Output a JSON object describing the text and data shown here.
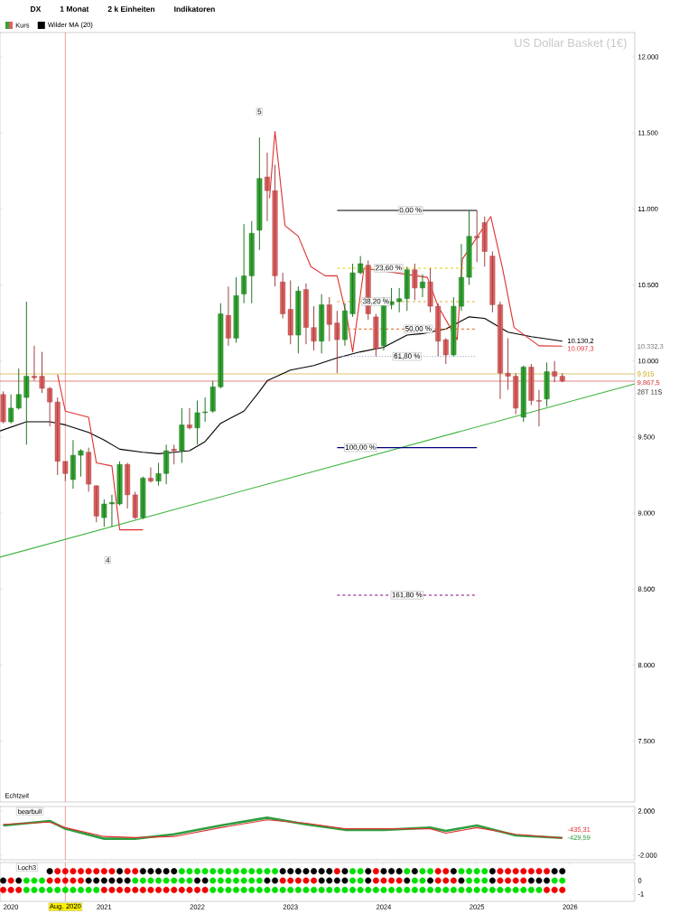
{
  "chart_data": [
    {
      "type": "candlestick",
      "title": "US Dollar Basket (1€)",
      "subtitle": "Echtzeit",
      "legend": "top left",
      "tick_labels": "y",
      "xlim": [
        "2019-11-19",
        "2026-09-11"
      ],
      "ylim": [
        7100,
        12160
      ],
      "yticks": [
        {
          "value": 7500,
          "label": "7.500"
        },
        {
          "value": 8000,
          "label": "8.000"
        },
        {
          "value": 8500,
          "label": "8.500"
        },
        {
          "value": 9000,
          "label": "9.000"
        },
        {
          "value": 9500,
          "label": "9.500"
        },
        {
          "value": 10000,
          "label": "10.000"
        },
        {
          "value": 10500,
          "label": "10.500"
        },
        {
          "value": 11000,
          "label": "11.000"
        },
        {
          "value": 11500,
          "label": "11.500"
        },
        {
          "value": 12000,
          "label": "12.000"
        }
      ],
      "series": [
        {
          "type": "candlestick",
          "name": "Kurs",
          "x": [
            "2019-12",
            "2020-01",
            "2020-02",
            "2020-03",
            "2020-04",
            "2020-05",
            "2020-06",
            "2020-07",
            "2020-08",
            "2020-09",
            "2020-10",
            "2020-11",
            "2020-12",
            "2021-01",
            "2021-02",
            "2021-03",
            "2021-04",
            "2021-05",
            "2021-06",
            "2021-07",
            "2021-08",
            "2021-09",
            "2021-10",
            "2021-11",
            "2021-12",
            "2022-01",
            "2022-02",
            "2022-03",
            "2022-04",
            "2022-05",
            "2022-06",
            "2022-07",
            "2022-08",
            "2022-09",
            "2022-10",
            "2022-11",
            "2022-12",
            "2023-01",
            "2023-02",
            "2023-03",
            "2023-04",
            "2023-05",
            "2023-06",
            "2023-07",
            "2023-08",
            "2023-09",
            "2023-10",
            "2023-11",
            "2023-12",
            "2024-01",
            "2024-02",
            "2024-03",
            "2024-04",
            "2024-05",
            "2024-06",
            "2024-07",
            "2024-08",
            "2024-09",
            "2024-10",
            "2024-11",
            "2024-12",
            "2025-01",
            "2025-02",
            "2025-03",
            "2025-04",
            "2025-05",
            "2025-06",
            "2025-07",
            "2025-08",
            "2025-09",
            "2025-10",
            "2025-11",
            "2025-12"
          ],
          "ohlc": [
            [
              9780,
              9800,
              9590,
              9600
            ],
            [
              9600,
              9780,
              9590,
              9690
            ],
            [
              9690,
              9950,
              9680,
              9780
            ],
            [
              9760,
              10390,
              9450,
              9900
            ],
            [
              9900,
              10100,
              9870,
              9890
            ],
            [
              9900,
              10060,
              9790,
              9820
            ],
            [
              9820,
              9830,
              9570,
              9730
            ],
            [
              9730,
              9760,
              9250,
              9340
            ],
            [
              9340,
              9340,
              9210,
              9260
            ],
            [
              9220,
              9480,
              9160,
              9380
            ],
            [
              9380,
              9420,
              9240,
              9410
            ],
            [
              9400,
              9430,
              9140,
              9190
            ],
            [
              9180,
              9180,
              8940,
              8980
            ],
            [
              8970,
              9090,
              8910,
              9060
            ],
            [
              9060,
              9120,
              8910,
              9070
            ],
            [
              9060,
              9340,
              9050,
              9320
            ],
            [
              9320,
              9330,
              9030,
              9120
            ],
            [
              9120,
              9140,
              8960,
              8970
            ],
            [
              8970,
              9240,
              8960,
              9230
            ],
            [
              9230,
              9300,
              9200,
              9210
            ],
            [
              9210,
              9330,
              9180,
              9260
            ],
            [
              9260,
              9450,
              9190,
              9410
            ],
            [
              9420,
              9450,
              9320,
              9410
            ],
            [
              9410,
              9690,
              9330,
              9580
            ],
            [
              9580,
              9690,
              9550,
              9560
            ],
            [
              9560,
              9740,
              9450,
              9660
            ],
            [
              9660,
              9760,
              9600,
              9665
            ],
            [
              9670,
              9870,
              9660,
              9830
            ],
            [
              9830,
              10380,
              9820,
              10310
            ],
            [
              10300,
              10490,
              10100,
              10150
            ],
            [
              10150,
              10550,
              10120,
              10430
            ],
            [
              10440,
              10900,
              10380,
              10560
            ],
            [
              10560,
              10920,
              10380,
              10840
            ],
            [
              10860,
              11470,
              10730,
              11200
            ],
            [
              11210,
              11370,
              10920,
              11120
            ],
            [
              11120,
              11290,
              10490,
              10560
            ],
            [
              10520,
              10580,
              10280,
              10310
            ],
            [
              10340,
              10530,
              10110,
              10170
            ],
            [
              10170,
              10490,
              10050,
              10460
            ],
            [
              10470,
              10510,
              10110,
              10220
            ],
            [
              10220,
              10360,
              10070,
              10130
            ],
            [
              10130,
              10440,
              10050,
              10370
            ],
            [
              10370,
              10420,
              10130,
              10240
            ],
            [
              10250,
              10330,
              9920,
              10140
            ],
            [
              10140,
              10380,
              10100,
              10330
            ],
            [
              10310,
              10640,
              10290,
              10580
            ],
            [
              10580,
              10690,
              10570,
              10640
            ],
            [
              10630,
              10660,
              10270,
              10310
            ],
            [
              10290,
              10310,
              10030,
              10080
            ],
            [
              10100,
              10420,
              10070,
              10370
            ],
            [
              10370,
              10480,
              10340,
              10390
            ],
            [
              10390,
              10480,
              10320,
              10410
            ],
            [
              10410,
              10620,
              10330,
              10600
            ],
            [
              10600,
              10640,
              10400,
              10480
            ],
            [
              10480,
              10570,
              10420,
              10520
            ],
            [
              10520,
              10610,
              10320,
              10360
            ],
            [
              10360,
              10380,
              10030,
              10130
            ],
            [
              10140,
              10150,
              9980,
              10040
            ],
            [
              10040,
              10420,
              10030,
              10360
            ],
            [
              10360,
              10770,
              10330,
              10550
            ],
            [
              10550,
              10990,
              10500,
              10820
            ],
            [
              10820,
              10990,
              10650,
              10810
            ],
            [
              10910,
              10950,
              10620,
              10720
            ],
            [
              10690,
              10720,
              10320,
              10370
            ],
            [
              10370,
              10390,
              9750,
              9920
            ],
            [
              9920,
              10150,
              9810,
              9900
            ],
            [
              9900,
              9920,
              9650,
              9690
            ],
            [
              9630,
              9970,
              9600,
              9960
            ],
            [
              9960,
              9980,
              9710,
              9740
            ],
            [
              9740,
              9810,
              9570,
              9735
            ],
            [
              9750,
              9990,
              9700,
              9930
            ],
            [
              9930,
              10000,
              9860,
              9900
            ],
            [
              9900,
              9920,
              9860,
              9867.5
            ]
          ],
          "colors": [
            "#e06060",
            "#33a532",
            "#33a532",
            "#33a532",
            "#e06060",
            "#e06060",
            "#e06060",
            "#e06060",
            "#e06060",
            "#33a532",
            "#33a532",
            "#e06060",
            "#e06060",
            "#33a532",
            "#33a532",
            "#33a532",
            "#e06060",
            "#e06060",
            "#33a532",
            "#e06060",
            "#33a532",
            "#33a532",
            "#e06060",
            "#33a532",
            "#e06060",
            "#33a532",
            "#33a532",
            "#33a532",
            "#33a532",
            "#e06060",
            "#33a532",
            "#33a532",
            "#33a532",
            "#33a532",
            "#e06060",
            "#e06060",
            "#e06060",
            "#e06060",
            "#33a532",
            "#e06060",
            "#e06060",
            "#33a532",
            "#e06060",
            "#e06060",
            "#33a532",
            "#33a532",
            "#33a532",
            "#e06060",
            "#e06060",
            "#33a532",
            "#33a532",
            "#33a532",
            "#33a532",
            "#e06060",
            "#33a532",
            "#e06060",
            "#e06060",
            "#e06060",
            "#33a532",
            "#33a532",
            "#33a532",
            "#e06060",
            "#e06060",
            "#e06060",
            "#e06060",
            "#e06060",
            "#e06060",
            "#33a532",
            "#e06060",
            "#e06060",
            "#33a532",
            "#e06060",
            "#e06060"
          ]
        },
        {
          "type": "line",
          "name": "Wilder MA (20)",
          "color": "#000000",
          "x": [
            "2019-11-19",
            "2020-03",
            "2020-06",
            "2020-08",
            "2020-11",
            "2021-01",
            "2021-03",
            "2021-06",
            "2021-08",
            "2021-10",
            "2021-12",
            "2022-02",
            "2022-04",
            "2022-07",
            "2022-09",
            "2022-10",
            "2023-01",
            "2023-04",
            "2023-07",
            "2023-10",
            "2024-01",
            "2024-04",
            "2024-06",
            "2024-09",
            "2024-12",
            "2025-02",
            "2025-05",
            "2025-08",
            "2025-12"
          ],
          "values": [
            9540,
            9600,
            9600,
            9580,
            9530,
            9480,
            9420,
            9400,
            9390,
            9400,
            9410,
            9470,
            9590,
            9670,
            9800,
            9870,
            9940,
            9970,
            10020,
            10060,
            10090,
            10170,
            10180,
            10210,
            10290,
            10280,
            10190,
            10160,
            10130.2
          ],
          "value_labels": [
            null,
            null,
            null,
            null,
            null,
            null,
            null,
            null,
            null,
            null,
            null,
            null,
            null,
            null,
            null,
            null,
            null,
            null,
            null,
            null,
            null,
            null,
            null,
            null,
            null,
            null,
            null,
            null,
            "10.130,2"
          ]
        },
        {
          "type": "line",
          "color": "#e03030",
          "x": [
            "2020-07",
            "2020-08",
            "2020-11",
            "2020-12",
            "2021-02",
            "2021-03",
            "2021-06",
            "2022-08",
            "2022-10-10",
            "2022-11",
            "2022-12-10",
            "2023-02",
            "2023-03-20",
            "2023-05-15",
            "2023-07",
            "2023-08-10",
            "2023-09",
            "2023-10-15",
            "2024-06-20",
            "2024-08",
            "2024-10-15",
            "2024-11-05",
            "2025-02-25",
            "2025-04-10",
            "2025-05-25",
            "2025-09",
            "2025-12"
          ],
          "values": [
            9910,
            9670,
            9630,
            9330,
            9310,
            8890,
            8890,
            null,
            11070,
            11510,
            10890,
            10820,
            10620,
            10560,
            10560,
            10280,
            10060,
            10610,
            10550,
            10360,
            10140,
            10670,
            10950,
            10610,
            10220,
            10100,
            10097.3
          ],
          "value_labels": [
            null,
            null,
            null,
            null,
            null,
            null,
            null,
            null,
            null,
            null,
            null,
            null,
            null,
            null,
            null,
            null,
            null,
            null,
            null,
            null,
            null,
            null,
            null,
            null,
            null,
            null,
            "10.097,3"
          ]
        },
        {
          "type": "line",
          "color": "#3cb43c",
          "x": [
            "2019-11-19",
            "2026-09-11"
          ],
          "values": [
            8710,
            9850
          ]
        },
        {
          "type": "line",
          "color": "#000000",
          "line_style": "solid",
          "x": [
            "2023-07",
            "2025-01"
          ],
          "values": [
            10990,
            10990
          ]
        },
        {
          "type": "line",
          "color": "#e6d200",
          "line_style": "dashed",
          "x": [
            "2023-07",
            "2025-01"
          ],
          "values": [
            10610,
            10610
          ]
        },
        {
          "type": "line",
          "color": "#e0b040",
          "line_style": "dashed",
          "x": [
            "2023-07",
            "2025-01"
          ],
          "values": [
            10390,
            10390
          ]
        },
        {
          "type": "line",
          "color": "#e08040",
          "line_style": "dashed",
          "x": [
            "2023-07",
            "2025-01"
          ],
          "values": [
            10210,
            10210
          ]
        },
        {
          "type": "line",
          "color": "#a0b0d0",
          "line_style": "dotted",
          "x": [
            "2023-07",
            "2025-01"
          ],
          "values": [
            10030,
            10030
          ]
        },
        {
          "type": "line",
          "color": "#000080",
          "line_style": "solid",
          "x": [
            "2023-07",
            "2025-01"
          ],
          "values": [
            9430,
            9430
          ]
        },
        {
          "type": "line",
          "color": "#800080",
          "line_style": "dashed",
          "x": [
            "2023-07",
            "2025-01"
          ],
          "values": [
            8460,
            8460
          ]
        }
      ],
      "ref_lines": [
        {
          "axis": "x",
          "value": "2020-08",
          "color": "#e06060"
        },
        {
          "axis": "y",
          "value": 9915,
          "label": "9.915",
          "color": "#c8a000"
        },
        {
          "axis": "y",
          "value": 9867.5,
          "label": "9.867,5",
          "color": "#d03030"
        }
      ],
      "annotations": [
        "DX",
        "1 Monat",
        "2 k Einheiten",
        "Indikatoren",
        {
          "text": "0,00 %",
          "x": "2024-04-15",
          "y": 10990
        },
        {
          "text": "23,60 %",
          "x": "2024-01-20",
          "y": 10610
        },
        {
          "text": "38,20 %",
          "x": "2023-12",
          "y": 10390
        },
        {
          "text": "50,00 %",
          "x": "2024-05-15",
          "y": 10210
        },
        {
          "text": "61,80 %",
          "x": "2024-04",
          "y": 10030
        },
        {
          "text": "100,00 %",
          "x": "2023-10",
          "y": 9430
        },
        {
          "text": "161,80 %",
          "x": "2024-04",
          "y": 8460
        },
        {
          "text": "4",
          "x": "2021-01-15",
          "y": 8690
        },
        {
          "text": "5",
          "x": "2022-09",
          "y": 11640
        },
        "10.332,3",
        "28T 11S"
      ]
    },
    {
      "type": "line",
      "title": "bearbull",
      "tick_labels": "y",
      "xlim": [
        "2019-11-19",
        "2026-09-11"
      ],
      "ylim": [
        -2410,
        2410
      ],
      "yticks": [
        {
          "value": -2000,
          "label": "-2.000"
        },
        {
          "value": 2000,
          "label": "2.000"
        }
      ],
      "series": [
        {
          "color": "#2e9e40",
          "x": [
            "2019-12",
            "2020-06",
            "2020-08",
            "2021-01",
            "2021-05",
            "2021-10",
            "2022-04",
            "2022-10",
            "2023-03",
            "2023-08",
            "2024-01",
            "2024-07",
            "2024-09",
            "2025-01",
            "2025-06",
            "2025-12"
          ],
          "values": [
            700,
            1100,
            400,
            -500,
            -500,
            -100,
            700,
            1400,
            800,
            300,
            300,
            500,
            200,
            700,
            -200,
            -429.59
          ],
          "value_labels": [
            null,
            null,
            null,
            null,
            null,
            null,
            null,
            null,
            null,
            null,
            null,
            null,
            null,
            null,
            null,
            "-429,59"
          ]
        },
        {
          "color": "#e03030",
          "x": [
            "2019-12",
            "2020-06",
            "2020-08",
            "2021-01",
            "2021-05",
            "2021-10",
            "2022-04",
            "2022-10",
            "2023-03",
            "2023-08",
            "2024-01",
            "2024-07",
            "2024-09",
            "2025-01",
            "2025-06",
            "2025-12"
          ],
          "values": [
            800,
            1000,
            500,
            -300,
            -400,
            -300,
            500,
            1200,
            900,
            400,
            400,
            400,
            0,
            500,
            -100,
            -435.31
          ],
          "value_labels": [
            null,
            null,
            null,
            null,
            null,
            null,
            null,
            null,
            null,
            null,
            null,
            null,
            null,
            null,
            null,
            "-435,31"
          ]
        }
      ],
      "ref_lines": [
        {
          "axis": "x",
          "value": "2020-08",
          "color": "#e06060"
        }
      ]
    },
    {
      "type": "scatter",
      "title": "Loch3",
      "marker": "circle",
      "xlim": [
        "2019-11-19",
        "2026-09-11"
      ],
      "ylim": [
        -1.55,
        1.35
      ],
      "xticks": [
        {
          "value": "2020",
          "label": "2020"
        },
        {
          "value": "2021",
          "label": "2021"
        },
        {
          "value": "2022",
          "label": "2022"
        },
        {
          "value": "2023",
          "label": "2023"
        },
        {
          "value": "2024",
          "label": "2024"
        },
        {
          "value": "2025",
          "label": "2025"
        },
        {
          "value": "2026",
          "label": "2026"
        }
      ],
      "yticks": [
        {
          "value": -1,
          "label": "-1"
        },
        {
          "value": 0,
          "label": "0"
        }
      ],
      "x": [
        "2019-12",
        "2020-01",
        "2020-02",
        "2020-03",
        "2020-04",
        "2020-05",
        "2020-06",
        "2020-07",
        "2020-08",
        "2020-09",
        "2020-10",
        "2020-11",
        "2020-12",
        "2021-01",
        "2021-02",
        "2021-03",
        "2021-04",
        "2021-05",
        "2021-06",
        "2021-07",
        "2021-08",
        "2021-09",
        "2021-10",
        "2021-11",
        "2021-12",
        "2022-01",
        "2022-02",
        "2022-03",
        "2022-04",
        "2022-05",
        "2022-06",
        "2022-07",
        "2022-08",
        "2022-09",
        "2022-10",
        "2022-11",
        "2022-12",
        "2023-01",
        "2023-02",
        "2023-03",
        "2023-04",
        "2023-05",
        "2023-06",
        "2023-07",
        "2023-08",
        "2023-09",
        "2023-10",
        "2023-11",
        "2023-12",
        "2024-01",
        "2024-02",
        "2024-03",
        "2024-04",
        "2024-05",
        "2024-06",
        "2024-07",
        "2024-08",
        "2024-09",
        "2024-10",
        "2024-11",
        "2024-12",
        "2025-01",
        "2025-02",
        "2025-03",
        "2025-04",
        "2025-05",
        "2025-06",
        "2025-07",
        "2025-08",
        "2025-09",
        "2025-10",
        "2025-11",
        "2025-12"
      ],
      "series": [
        {
          "values": [
            null,
            null,
            null,
            null,
            null,
            null,
            0.7,
            0.7,
            0.7,
            0.7,
            0.7,
            0.7,
            0.7,
            0.7,
            0.7,
            0.7,
            0.7,
            0.7,
            0.7,
            0.7,
            0.7,
            0.7,
            0.7,
            0.7,
            0.7,
            0.7,
            0.7,
            0.7,
            0.7,
            0.7,
            0.7,
            0.7,
            0.7,
            0.7,
            0.7,
            0.7,
            0.7,
            0.7,
            0.7,
            0.7,
            0.7,
            0.7,
            0.7,
            0.7,
            0.7,
            0.7,
            0.7,
            0.7,
            0.7,
            0.7,
            0.7,
            0.7,
            0.7,
            0.7,
            0.7,
            0.7,
            0.7,
            0.7,
            0.7,
            0.7,
            0.7,
            0.7,
            0.7,
            0.7,
            0.7,
            0.7,
            0.7,
            0.7,
            0.7,
            0.7,
            0.7,
            0.7,
            0.7
          ],
          "colors": [
            "#000000",
            "#000000",
            "#000000",
            "#000000",
            "#000000",
            "#000000",
            "#000000",
            "#f00000",
            "#f00000",
            "#f00000",
            "#f00000",
            "#f00000",
            "#f00000",
            "#f00000",
            "#f00000",
            "#000000",
            "#f00000",
            "#f00000",
            "#000000",
            "#000000",
            "#000000",
            "#000000",
            "#000000",
            "#00e000",
            "#00e000",
            "#00e000",
            "#00e000",
            "#00e000",
            "#00e000",
            "#00e000",
            "#00e000",
            "#00e000",
            "#00e000",
            "#00e000",
            "#00e000",
            "#00e000",
            "#000000",
            "#000000",
            "#000000",
            "#000000",
            "#000000",
            "#000000",
            "#000000",
            "#f00000",
            "#000000",
            "#00e000",
            "#00e000",
            "#000000",
            "#f00000",
            "#000000",
            "#000000",
            "#000000",
            "#00e000",
            "#000000",
            "#00e000",
            "#00e000",
            "#f00000",
            "#f00000",
            "#000000",
            "#00e000",
            "#00e000",
            "#00e000",
            "#00e000",
            "#000000",
            "#f00000",
            "#f00000",
            "#f00000",
            "#f00000",
            "#f00000",
            "#f00000",
            "#f00000",
            "#000000",
            "#000000"
          ]
        },
        {
          "values": [
            0,
            0,
            0,
            0,
            0,
            0,
            0,
            0,
            0,
            0,
            0,
            0,
            0,
            0,
            0,
            0,
            0,
            0,
            0,
            0,
            0,
            0,
            0,
            0,
            0,
            0,
            0,
            0,
            0,
            0,
            0,
            0,
            0,
            0,
            0,
            0,
            0,
            0,
            0,
            0,
            0,
            0,
            0,
            0,
            0,
            0,
            0,
            0,
            0,
            0,
            0,
            0,
            0,
            0,
            0,
            0,
            0,
            0,
            0,
            0,
            0,
            0,
            0,
            0,
            0,
            0,
            0,
            0,
            0,
            0,
            0,
            0,
            0
          ],
          "colors": [
            "#000000",
            "#f00000",
            "#000000",
            "#00e000",
            "#00e000",
            "#00e000",
            "#f00000",
            "#f00000",
            "#f00000",
            "#f00000",
            "#f00000",
            "#000000",
            "#000000",
            "#000000",
            "#000000",
            "#000000",
            "#000000",
            "#00e000",
            "#00e000",
            "#00e000",
            "#00e000",
            "#00e000",
            "#00e000",
            "#00e000",
            "#00e000",
            "#000000",
            "#000000",
            "#00e000",
            "#00e000",
            "#00e000",
            "#00e000",
            "#00e000",
            "#00e000",
            "#00e000",
            "#000000",
            "#000000",
            "#f00000",
            "#f00000",
            "#f00000",
            "#f00000",
            "#f00000",
            "#000000",
            "#000000",
            "#000000",
            "#000000",
            "#00e000",
            "#00e000",
            "#000000",
            "#f00000",
            "#f00000",
            "#f00000",
            "#f00000",
            "#000000",
            "#00e000",
            "#00e000",
            "#000000",
            "#f00000",
            "#f00000",
            "#f00000",
            "#000000",
            "#00e000",
            "#00e000",
            "#00e000",
            "#000000",
            "#f00000",
            "#f00000",
            "#f00000",
            "#f00000",
            "#000000",
            "#000000",
            "#000000",
            "#00e000",
            "#00e000"
          ]
        },
        {
          "values": [
            -0.7,
            -0.7,
            -0.7,
            -0.7,
            -0.7,
            -0.7,
            -0.7,
            -0.7,
            -0.7,
            -0.7,
            -0.7,
            -0.7,
            -0.7,
            -0.7,
            -0.7,
            -0.7,
            -0.7,
            -0.7,
            -0.7,
            -0.7,
            -0.7,
            -0.7,
            -0.7,
            -0.7,
            -0.7,
            -0.7,
            -0.7,
            -0.7,
            -0.7,
            -0.7,
            -0.7,
            -0.7,
            -0.7,
            -0.7,
            -0.7,
            -0.7,
            -0.7,
            -0.7,
            -0.7,
            -0.7,
            -0.7,
            -0.7,
            -0.7,
            -0.7,
            -0.7,
            -0.7,
            -0.7,
            -0.7,
            -0.7,
            -0.7,
            -0.7,
            -0.7,
            -0.7,
            -0.7,
            -0.7,
            -0.7,
            -0.7,
            -0.7,
            -0.7,
            -0.7,
            -0.7,
            -0.7,
            -0.7,
            -0.7,
            -0.7,
            -0.7,
            -0.7,
            -0.7,
            -0.7,
            -0.7,
            -0.7,
            -0.7,
            -0.7
          ],
          "colors": [
            "#f00000",
            "#f00000",
            "#f00000",
            "#00e000",
            "#00e000",
            "#00e000",
            "#00e000",
            "#00e000",
            "#00e000",
            "#00e000",
            "#00e000",
            "#00e000",
            "#00e000",
            "#f00000",
            "#f00000",
            "#f00000",
            "#f00000",
            "#f00000",
            "#f00000",
            "#f00000",
            "#f00000",
            "#f00000",
            "#f00000",
            "#f00000",
            "#f00000",
            "#f00000",
            "#f00000",
            "#00e000",
            "#00e000",
            "#00e000",
            "#00e000",
            "#00e000",
            "#00e000",
            "#00e000",
            "#00e000",
            "#00e000",
            "#00e000",
            "#00e000",
            "#00e000",
            "#00e000",
            "#00e000",
            "#00e000",
            "#00e000",
            "#00e000",
            "#00e000",
            "#00e000",
            "#00e000",
            "#00e000",
            "#00e000",
            "#00e000",
            "#00e000",
            "#00e000",
            "#00e000",
            "#00e000",
            "#00e000",
            "#00e000",
            "#00e000",
            "#00e000",
            "#00e000",
            "#00e000",
            "#00e000",
            "#00e000",
            "#00e000",
            "#00e000",
            "#00e000",
            "#00e000",
            "#00e000",
            "#00e000",
            "#00e000",
            "#00e000",
            "#f00000",
            "#f00000",
            "#f00000"
          ]
        }
      ],
      "ref_lines": [
        {
          "axis": "x",
          "value": "2020-08",
          "label": "Aug. 2020",
          "color": "#e06060"
        }
      ]
    }
  ]
}
